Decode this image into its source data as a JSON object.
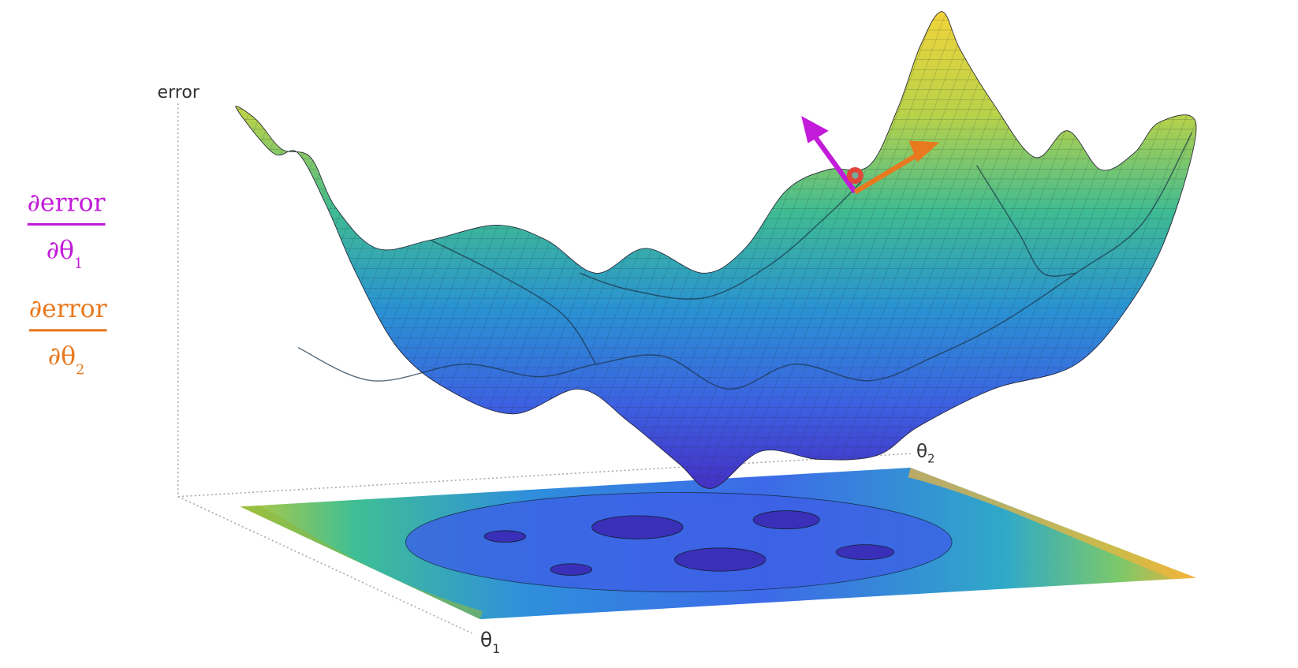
{
  "axes": {
    "vertical": {
      "label": "error"
    },
    "theta1": {
      "symbol": "θ",
      "subscript": "1"
    },
    "theta2": {
      "symbol": "θ",
      "subscript": "2"
    }
  },
  "gradients": [
    {
      "numerator": "∂error",
      "denominator": {
        "symbol": "∂θ",
        "subscript": "1"
      },
      "color": "#c21bd9"
    },
    {
      "numerator": "∂error",
      "denominator": {
        "symbol": "∂θ",
        "subscript": "2"
      },
      "color": "#e8791f"
    }
  ]
}
